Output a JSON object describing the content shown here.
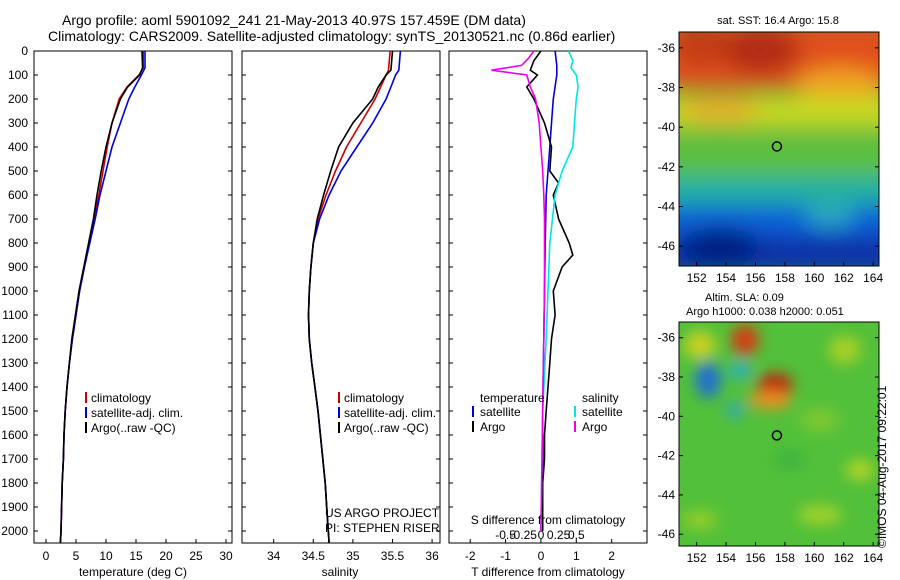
{
  "header": {
    "line1": "Argo profile: aoml 5901092_241 21-May-2013 40.97S 157.459E (DM data)",
    "line2": "Climatology: CARS2009. Satellite-adjusted climatology: synTS_20130521.nc (0.86d earlier)"
  },
  "depth_ticks": [
    "0",
    "100",
    "200",
    "300",
    "400",
    "500",
    "600",
    "700",
    "800",
    "900",
    "1000",
    "1100",
    "1200",
    "1300",
    "1400",
    "1500",
    "1600",
    "1700",
    "1800",
    "1900",
    "2000"
  ],
  "colors": {
    "climatology": "#cc0000",
    "satellite": "#0000dd",
    "argo": "#000000",
    "salinity_satellite": "#00e5e5",
    "salinity_argo": "#ee00ee"
  },
  "legend_profile": [
    "climatology",
    "satellite-adj. clim.",
    "Argo(..raw -QC)"
  ],
  "project": {
    "line1": "US ARGO PROJECT",
    "line2": "PI: STEPHEN RISER"
  },
  "diff_legend": {
    "temperature": "temperature",
    "salinity": "salinity",
    "satellite": "satellite",
    "argo": "Argo"
  },
  "map_sst": {
    "title": "sat. SST: 16.4 Argo: 15.8"
  },
  "map_sla": {
    "title1": "Altim. SLA: 0.09",
    "title2": "Argo h1000: 0.038 h2000: 0.051"
  },
  "map_axes": {
    "lat_ticks": [
      "-36",
      "-38",
      "-40",
      "-42",
      "-44",
      "-46"
    ],
    "lon_ticks": [
      "152",
      "154",
      "156",
      "158",
      "160",
      "162",
      "164"
    ]
  },
  "profile_location": {
    "lat": -40.97,
    "lon": 157.459
  },
  "stamp": "©IMOS 04-Aug-2017 09:22:01",
  "chart_data": [
    {
      "type": "line",
      "xlabel": "temperature (deg C)",
      "ylim": [
        2050,
        0
      ],
      "xlim": [
        -2,
        31
      ],
      "xticks": [
        "0",
        "5",
        "10",
        "15",
        "20",
        "25",
        "30"
      ],
      "series": [
        {
          "name": "climatology",
          "depth": [
            0,
            70,
            100,
            150,
            200,
            300,
            400,
            500,
            600,
            700,
            800,
            900,
            1000,
            1100,
            1200,
            1300,
            1400,
            1500,
            1600,
            1700,
            1800,
            1900,
            2000,
            2050
          ],
          "values": [
            16.2,
            16.2,
            15.5,
            13.5,
            12.2,
            11.0,
            10.2,
            9.5,
            8.8,
            8.0,
            7.2,
            6.4,
            5.6,
            5.0,
            4.4,
            3.9,
            3.5,
            3.2,
            3.0,
            2.9,
            2.7,
            2.6,
            2.5,
            2.4
          ]
        },
        {
          "name": "satellite-adj. clim.",
          "depth": [
            0,
            70,
            100,
            150,
            200,
            300,
            400,
            500,
            600,
            700,
            800,
            900,
            1000,
            1100,
            1200,
            1300,
            1400,
            1500,
            1600,
            1700,
            1800,
            1900,
            2000,
            2050
          ],
          "values": [
            16.5,
            16.5,
            15.9,
            14.8,
            13.8,
            12.4,
            11.0,
            10.0,
            9.0,
            8.2,
            7.3,
            6.4,
            5.6,
            5.0,
            4.4,
            3.9,
            3.5,
            3.2,
            3.0,
            2.9,
            2.7,
            2.6,
            2.5,
            2.4
          ]
        },
        {
          "name": "Argo(..raw -QC)",
          "depth": [
            0,
            70,
            100,
            150,
            200,
            300,
            400,
            500,
            600,
            700,
            800,
            900,
            1000,
            1100,
            1200,
            1300,
            1400,
            1500,
            1600,
            1700,
            1800,
            1900,
            2000,
            2050
          ],
          "values": [
            16.0,
            16.1,
            15.6,
            13.6,
            12.4,
            11.0,
            10.0,
            9.2,
            8.5,
            7.9,
            7.1,
            6.3,
            5.5,
            4.9,
            4.3,
            3.9,
            3.5,
            3.2,
            3.0,
            2.9,
            2.7,
            2.6,
            2.5,
            2.4
          ]
        }
      ]
    },
    {
      "type": "line",
      "xlabel": "salinity",
      "ylim": [
        2050,
        0
      ],
      "xlim": [
        33.6,
        36.1
      ],
      "xticks": [
        "34",
        "34.5",
        "35",
        "35.5",
        "36"
      ],
      "series": [
        {
          "name": "climatology",
          "depth": [
            0,
            80,
            100,
            150,
            200,
            300,
            400,
            500,
            600,
            700,
            800,
            900,
            1000,
            1100,
            1200,
            1300,
            1400,
            1500,
            1600,
            1700,
            1800,
            1900,
            2000,
            2050
          ],
          "values": [
            35.47,
            35.45,
            35.42,
            35.35,
            35.28,
            35.1,
            34.92,
            34.78,
            34.66,
            34.56,
            34.5,
            34.47,
            34.45,
            34.44,
            34.45,
            34.48,
            34.52,
            34.56,
            34.59,
            34.62,
            34.65,
            34.67,
            34.69,
            34.7
          ]
        },
        {
          "name": "satellite-adj. clim.",
          "depth": [
            0,
            80,
            100,
            150,
            200,
            300,
            400,
            500,
            600,
            700,
            800,
            900,
            1000,
            1100,
            1200,
            1300,
            1400,
            1500,
            1600,
            1700,
            1800,
            1900,
            2000,
            2050
          ],
          "values": [
            35.6,
            35.58,
            35.54,
            35.48,
            35.42,
            35.25,
            35.05,
            34.85,
            34.7,
            34.58,
            34.5,
            34.47,
            34.45,
            34.44,
            34.45,
            34.48,
            34.52,
            34.56,
            34.59,
            34.62,
            34.65,
            34.67,
            34.69,
            34.7
          ]
        },
        {
          "name": "Argo(..raw -QC)",
          "depth": [
            0,
            80,
            100,
            150,
            200,
            300,
            400,
            500,
            600,
            700,
            800,
            900,
            1000,
            1100,
            1200,
            1300,
            1400,
            1500,
            1600,
            1700,
            1800,
            1900,
            2000,
            2050
          ],
          "values": [
            35.5,
            35.48,
            35.42,
            35.32,
            35.25,
            35.0,
            34.82,
            34.72,
            34.63,
            34.55,
            34.5,
            34.47,
            34.45,
            34.44,
            34.45,
            34.48,
            34.52,
            34.56,
            34.59,
            34.62,
            34.65,
            34.67,
            34.69,
            34.7
          ]
        }
      ]
    },
    {
      "type": "line",
      "xlabel": "T difference from climatology",
      "xlabel_top": "S difference from climatology",
      "ylim": [
        2050,
        0
      ],
      "xlim": [
        -2.6,
        3.0
      ],
      "xticks": [
        "-2",
        "-1",
        "0",
        "1",
        "2"
      ],
      "xticks_top": [
        "-0.5",
        "-0.25",
        "0",
        "0.25",
        "0.5"
      ],
      "series": [
        {
          "name": "temperature satellite",
          "depth": [
            0,
            60,
            100,
            200,
            300,
            400,
            500,
            600,
            800,
            1000,
            1200,
            1500,
            2000
          ],
          "values": [
            0.4,
            0.45,
            0.45,
            0.35,
            0.3,
            0.25,
            0.2,
            0.15,
            0.12,
            0.1,
            0.08,
            0.05,
            0.05
          ]
        },
        {
          "name": "temperature Argo",
          "depth": [
            0,
            40,
            80,
            100,
            150,
            200,
            300,
            350,
            400,
            500,
            550,
            600,
            700,
            800,
            850,
            900,
            1000,
            1100,
            1200,
            1300,
            1400,
            1500,
            1600,
            1700,
            1800,
            1900,
            2000
          ],
          "values": [
            0.0,
            -0.2,
            -0.3,
            -0.1,
            -0.4,
            -0.2,
            0.1,
            0.2,
            0.3,
            0.25,
            0.5,
            0.35,
            0.5,
            0.8,
            0.9,
            0.6,
            0.35,
            0.4,
            0.3,
            0.25,
            0.2,
            0.15,
            0.1,
            0.1,
            0.05,
            0.05,
            0.05
          ]
        },
        {
          "name": "salinity satellite",
          "depth": [
            0,
            40,
            70,
            100,
            150,
            200,
            300,
            400,
            500,
            600,
            800,
            1000,
            1200,
            1500,
            2000
          ],
          "values": [
            0.78,
            0.9,
            0.85,
            1.0,
            1.05,
            1.0,
            0.95,
            0.9,
            0.6,
            0.4,
            0.25,
            0.2,
            0.15,
            0.05,
            0.0
          ]
        },
        {
          "name": "salinity Argo",
          "depth": [
            0,
            30,
            60,
            80,
            100,
            150,
            200,
            300,
            400,
            500,
            600,
            700,
            800,
            1000,
            1200,
            1500,
            2000
          ],
          "values": [
            -0.2,
            -0.35,
            -0.55,
            -1.4,
            -0.4,
            -0.3,
            -0.15,
            -0.05,
            0.0,
            0.05,
            0.08,
            0.1,
            0.1,
            0.1,
            0.08,
            0.05,
            0.0
          ]
        }
      ]
    }
  ]
}
